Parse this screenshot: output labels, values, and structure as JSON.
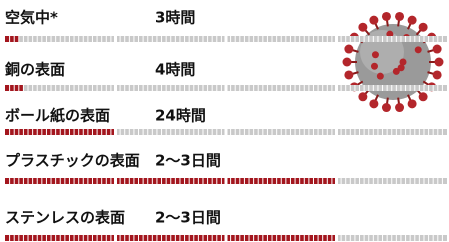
{
  "chart_data": {
    "type": "bar",
    "categories": [
      "空気中*",
      "銅の表面",
      "ボール紙の表面",
      "プラスチックの表面",
      "ステンレスの表面"
    ],
    "values": [
      3,
      4,
      24,
      72,
      72
    ],
    "value_labels": [
      "3時間",
      "4時間",
      "24時間",
      "2〜3日間",
      "2〜3日間"
    ],
    "color": "#a3161e",
    "xlim": [
      0,
      96
    ]
  }
}
